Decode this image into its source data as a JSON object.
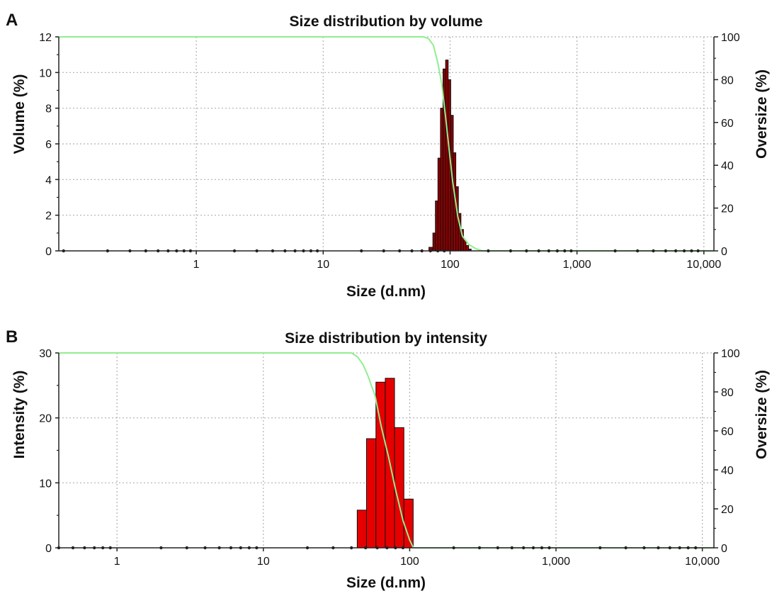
{
  "colors": {
    "cumulative_line": "#90ee90",
    "gridline": "#b0b0b0",
    "axis": "#222222",
    "bar_outline": "#111111"
  },
  "chart_data": [
    {
      "panel": "A",
      "type": "bar",
      "title": "Size distribution by volume",
      "xlabel": "Size (d.nm)",
      "ylabel": "Volume (%)",
      "y2label": "Oversize (%)",
      "xscale": "log",
      "xlim": [
        0.0825,
        12000
      ],
      "ylim": [
        0,
        12
      ],
      "y2lim": [
        0,
        100
      ],
      "xticks": [
        1,
        10,
        100,
        1000,
        10000
      ],
      "xtick_labels": [
        "1",
        "10",
        "100",
        "1,000",
        "10,000"
      ],
      "yticks": [
        0,
        2,
        4,
        6,
        8,
        10,
        12
      ],
      "ytick_labels": [
        "0",
        "2",
        "4",
        "6",
        "8",
        "10",
        "12"
      ],
      "y2ticks": [
        0,
        20,
        40,
        60,
        80,
        100
      ],
      "y2tick_labels": [
        "0",
        "20",
        "40",
        "60",
        "80",
        "100"
      ],
      "grid": true,
      "bar_color": "#8b0000",
      "bars": [
        {
          "x0": 68.1,
          "x1": 73.2,
          "value": 0.2
        },
        {
          "x0": 73.2,
          "x1": 76.6,
          "value": 1.0
        },
        {
          "x0": 76.6,
          "x1": 80.2,
          "value": 2.8
        },
        {
          "x0": 80.2,
          "x1": 84.0,
          "value": 5.2
        },
        {
          "x0": 84.0,
          "x1": 88.0,
          "value": 8.0
        },
        {
          "x0": 88.0,
          "x1": 92.2,
          "value": 10.2
        },
        {
          "x0": 92.2,
          "x1": 96.6,
          "value": 10.7
        },
        {
          "x0": 96.6,
          "x1": 101.2,
          "value": 9.6
        },
        {
          "x0": 101.2,
          "x1": 106.0,
          "value": 7.6
        },
        {
          "x0": 106.0,
          "x1": 111.0,
          "value": 5.5
        },
        {
          "x0": 111.0,
          "x1": 116.3,
          "value": 3.6
        },
        {
          "x0": 116.3,
          "x1": 121.8,
          "value": 2.1
        },
        {
          "x0": 121.8,
          "x1": 127.5,
          "value": 1.2
        },
        {
          "x0": 127.5,
          "x1": 133.6,
          "value": 0.6
        },
        {
          "x0": 133.6,
          "x1": 140.0,
          "value": 0.3
        },
        {
          "x0": 140.0,
          "x1": 146.6,
          "value": 0.1
        }
      ],
      "oversize_curve": {
        "x": [
          0.0825,
          62,
          68,
          74,
          80,
          86,
          92,
          98,
          105,
          115,
          125,
          140,
          160,
          180,
          12000
        ],
        "y": [
          100,
          100,
          99,
          96,
          88,
          78,
          63,
          48,
          32,
          16,
          7,
          3,
          1,
          0,
          0
        ]
      }
    },
    {
      "panel": "B",
      "type": "bar",
      "title": "Size distribution by intensity",
      "xlabel": "Size (d.nm)",
      "ylabel": "Intensity (%)",
      "y2label": "Oversize (%)",
      "xscale": "log",
      "xlim": [
        0.4,
        12000
      ],
      "ylim": [
        0,
        30
      ],
      "y2lim": [
        0,
        100
      ],
      "xticks": [
        1,
        10,
        100,
        1000,
        10000
      ],
      "xtick_labels": [
        "1",
        "10",
        "100",
        "1,000",
        "10,000"
      ],
      "yticks": [
        0,
        10,
        20,
        30
      ],
      "ytick_labels": [
        "0",
        "10",
        "20",
        "30"
      ],
      "y2ticks": [
        0,
        20,
        40,
        60,
        80,
        100
      ],
      "y2tick_labels": [
        "0",
        "20",
        "40",
        "60",
        "80",
        "100"
      ],
      "grid": true,
      "bar_color": "#e60000",
      "bars": [
        {
          "x0": 43.8,
          "x1": 50.7,
          "value": 5.8
        },
        {
          "x0": 50.7,
          "x1": 58.8,
          "value": 16.8
        },
        {
          "x0": 58.8,
          "x1": 68.1,
          "value": 25.5
        },
        {
          "x0": 68.1,
          "x1": 78.8,
          "value": 26.1
        },
        {
          "x0": 78.8,
          "x1": 91.3,
          "value": 18.5
        },
        {
          "x0": 91.3,
          "x1": 105.7,
          "value": 7.5
        }
      ],
      "oversize_curve": {
        "x": [
          0.4,
          40,
          44,
          48,
          52,
          58,
          64,
          72,
          80,
          90,
          100,
          106,
          12000
        ],
        "y": [
          100,
          100,
          98,
          94,
          88,
          78,
          62,
          46,
          30,
          14,
          4,
          0,
          0
        ]
      }
    }
  ]
}
